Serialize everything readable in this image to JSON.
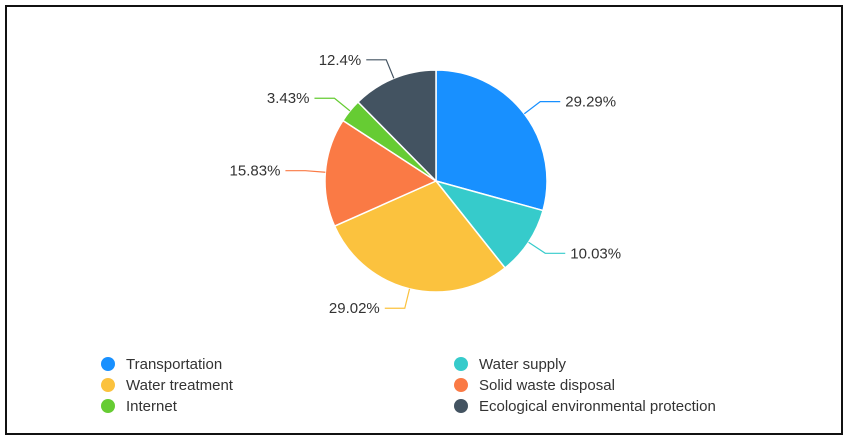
{
  "chart_data": {
    "type": "pie",
    "labels": [
      "Transportation",
      "Water supply",
      "Water treatment",
      "Solid waste disposal",
      "Internet",
      "Ecological environmental protection"
    ],
    "values": [
      29.29,
      10.03,
      29.02,
      15.83,
      3.43,
      12.4
    ],
    "data_labels": [
      "29.29%",
      "10.03%",
      "29.02%",
      "15.83%",
      "3.43%",
      "12.4%"
    ],
    "colors": [
      "#1890FF",
      "#36CBCB",
      "#FBC23E",
      "#FA7A45",
      "#66CC33",
      "#435361"
    ],
    "legend": {
      "placement": "bottom",
      "columns": 2
    }
  }
}
